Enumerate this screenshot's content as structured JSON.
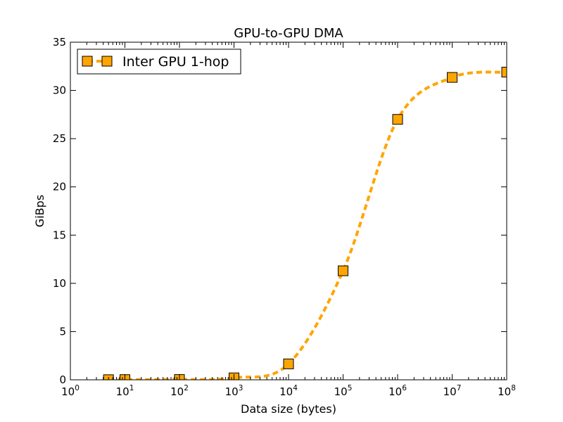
{
  "chart_data": {
    "type": "line",
    "title": "GPU-to-GPU DMA",
    "xlabel": "Data size (bytes)",
    "ylabel": "GiBps",
    "xscale": "log",
    "xlim": [
      1,
      100000000
    ],
    "ylim": [
      0,
      35
    ],
    "x_ticks": [
      {
        "value": 1,
        "base": "10",
        "exp": "0"
      },
      {
        "value": 10,
        "base": "10",
        "exp": "1"
      },
      {
        "value": 100,
        "base": "10",
        "exp": "2"
      },
      {
        "value": 1000,
        "base": "10",
        "exp": "3"
      },
      {
        "value": 10000,
        "base": "10",
        "exp": "4"
      },
      {
        "value": 100000,
        "base": "10",
        "exp": "5"
      },
      {
        "value": 1000000,
        "base": "10",
        "exp": "6"
      },
      {
        "value": 10000000,
        "base": "10",
        "exp": "7"
      },
      {
        "value": 100000000,
        "base": "10",
        "exp": "8"
      }
    ],
    "y_ticks": [
      "0",
      "5",
      "10",
      "15",
      "20",
      "25",
      "30",
      "35"
    ],
    "grid": false,
    "legend": {
      "position": "top-left"
    },
    "series": [
      {
        "name": "Inter GPU 1-hop",
        "color": "#FFA500",
        "line_style": "dashed",
        "marker": "square",
        "x": [
          5,
          10,
          100,
          1000,
          10000,
          100000,
          1000000,
          10000000,
          100000000
        ],
        "y": [
          0.01,
          0.02,
          0.03,
          0.2,
          1.65,
          11.3,
          27.0,
          31.35,
          31.9
        ]
      }
    ]
  }
}
